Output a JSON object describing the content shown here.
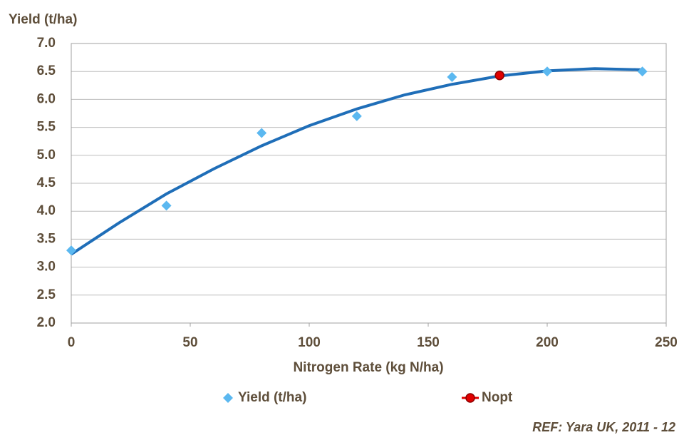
{
  "chart_data": {
    "type": "scatter",
    "ylabel": "Yield (t/ha)",
    "xlabel": "Nitrogen Rate (kg N/ha)",
    "source": "REF: Yara UK, 2011 - 12",
    "xlim": [
      0,
      250
    ],
    "xticks": [
      0,
      50,
      100,
      150,
      200,
      250
    ],
    "ylim": [
      2,
      7
    ],
    "yticks": [
      {
        "value": 2,
        "label": "2.0"
      },
      {
        "value": 2.5,
        "label": "2.5"
      },
      {
        "value": 3,
        "label": "3.0"
      },
      {
        "value": 3.5,
        "label": "3.5"
      },
      {
        "value": 4,
        "label": "4.0"
      },
      {
        "value": 4.5,
        "label": "4.5"
      },
      {
        "value": 5,
        "label": "5.0"
      },
      {
        "value": 5.5,
        "label": "5.5"
      },
      {
        "value": 6,
        "label": "6.0"
      },
      {
        "value": 6.5,
        "label": "6.5"
      },
      {
        "value": 7,
        "label": "7.0"
      }
    ],
    "grid": true,
    "series": [
      {
        "name": "Yield (t/ha)",
        "color": "#5bb8f0",
        "marker": "diamond",
        "x": [
          0,
          40,
          80,
          120,
          160,
          200,
          240
        ],
        "values": [
          3.3,
          4.1,
          5.4,
          5.7,
          6.4,
          6.5,
          6.5
        ]
      },
      {
        "name": "Nopt",
        "color": "#e00000",
        "marker": "circle",
        "x": [
          180
        ],
        "values": [
          6.43
        ]
      }
    ],
    "trendline": {
      "color": "#1f6eb8",
      "x": [
        0,
        20,
        40,
        60,
        80,
        100,
        120,
        140,
        160,
        180,
        200,
        220,
        240
      ],
      "values": [
        3.23,
        3.79,
        4.31,
        4.76,
        5.17,
        5.53,
        5.83,
        6.08,
        6.27,
        6.42,
        6.51,
        6.55,
        6.53
      ]
    }
  }
}
